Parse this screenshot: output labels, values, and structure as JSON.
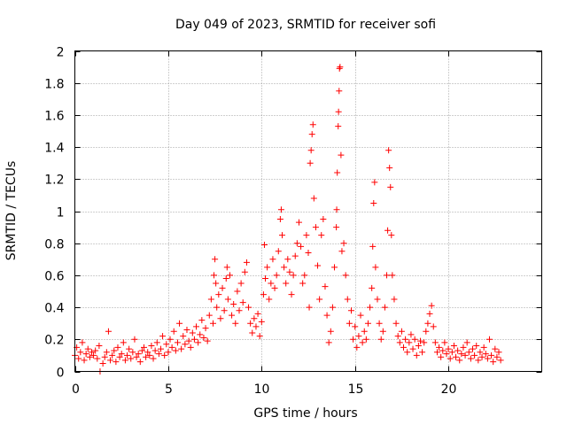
{
  "chart_data": {
    "type": "scatter",
    "title": "Day 049 of 2023, SRMTID for receiver sofi",
    "xlabel": "GPS time / hours",
    "ylabel": "SRMTID / TECUs",
    "xlim": [
      0,
      25
    ],
    "ylim": [
      0,
      2
    ],
    "xticks": [
      0,
      5,
      10,
      15,
      20
    ],
    "xtick_labels": [
      "0",
      "5",
      "10",
      "15",
      "20"
    ],
    "yticks": [
      0,
      0.2,
      0.4,
      0.6,
      0.8,
      1,
      1.2,
      1.4,
      1.6,
      1.8,
      2
    ],
    "ytick_labels": [
      "0",
      "0.2",
      "0.4",
      "0.6",
      "0.8",
      "1",
      "1.2",
      "1.4",
      "1.6",
      "1.8",
      "2"
    ],
    "grid": true,
    "marker": "plus",
    "color": "#ff0000",
    "series": [
      {
        "name": "SRMTID",
        "points": [
          [
            0.0,
            0.1
          ],
          [
            0.1,
            0.15
          ],
          [
            0.2,
            0.08
          ],
          [
            0.3,
            0.12
          ],
          [
            0.4,
            0.18
          ],
          [
            0.5,
            0.07
          ],
          [
            0.6,
            0.11
          ],
          [
            0.7,
            0.14
          ],
          [
            0.8,
            0.09
          ],
          [
            0.9,
            0.12
          ],
          [
            1.0,
            0.1
          ],
          [
            1.1,
            0.13
          ],
          [
            1.2,
            0.08
          ],
          [
            1.3,
            0.16
          ],
          [
            1.35,
            0.0
          ],
          [
            1.5,
            0.05
          ],
          [
            1.6,
            0.09
          ],
          [
            1.7,
            0.12
          ],
          [
            1.8,
            0.25
          ],
          [
            1.9,
            0.07
          ],
          [
            2.0,
            0.1
          ],
          [
            2.1,
            0.13
          ],
          [
            2.2,
            0.06
          ],
          [
            2.3,
            0.15
          ],
          [
            2.4,
            0.09
          ],
          [
            2.5,
            0.11
          ],
          [
            2.6,
            0.18
          ],
          [
            2.7,
            0.07
          ],
          [
            2.8,
            0.1
          ],
          [
            2.9,
            0.14
          ],
          [
            3.0,
            0.08
          ],
          [
            3.1,
            0.12
          ],
          [
            3.2,
            0.2
          ],
          [
            3.3,
            0.09
          ],
          [
            3.4,
            0.11
          ],
          [
            3.5,
            0.06
          ],
          [
            3.6,
            0.13
          ],
          [
            3.7,
            0.15
          ],
          [
            3.8,
            0.09
          ],
          [
            3.9,
            0.12
          ],
          [
            4.0,
            0.1
          ],
          [
            4.1,
            0.16
          ],
          [
            4.2,
            0.08
          ],
          [
            4.3,
            0.13
          ],
          [
            4.4,
            0.18
          ],
          [
            4.5,
            0.11
          ],
          [
            4.6,
            0.14
          ],
          [
            4.7,
            0.22
          ],
          [
            4.8,
            0.1
          ],
          [
            4.9,
            0.17
          ],
          [
            5.0,
            0.12
          ],
          [
            5.1,
            0.2
          ],
          [
            5.2,
            0.15
          ],
          [
            5.3,
            0.25
          ],
          [
            5.4,
            0.13
          ],
          [
            5.5,
            0.18
          ],
          [
            5.6,
            0.3
          ],
          [
            5.7,
            0.14
          ],
          [
            5.8,
            0.22
          ],
          [
            5.9,
            0.17
          ],
          [
            6.0,
            0.26
          ],
          [
            6.1,
            0.19
          ],
          [
            6.2,
            0.15
          ],
          [
            6.3,
            0.24
          ],
          [
            6.4,
            0.2
          ],
          [
            6.5,
            0.28
          ],
          [
            6.6,
            0.18
          ],
          [
            6.7,
            0.23
          ],
          [
            6.8,
            0.32
          ],
          [
            6.9,
            0.21
          ],
          [
            7.0,
            0.27
          ],
          [
            7.1,
            0.19
          ],
          [
            7.2,
            0.35
          ],
          [
            7.3,
            0.45
          ],
          [
            7.4,
            0.3
          ],
          [
            7.45,
            0.6
          ],
          [
            7.5,
            0.7
          ],
          [
            7.55,
            0.55
          ],
          [
            7.6,
            0.4
          ],
          [
            7.7,
            0.48
          ],
          [
            7.8,
            0.33
          ],
          [
            7.9,
            0.52
          ],
          [
            8.0,
            0.38
          ],
          [
            8.1,
            0.58
          ],
          [
            8.15,
            0.65
          ],
          [
            8.2,
            0.45
          ],
          [
            8.3,
            0.6
          ],
          [
            8.4,
            0.35
          ],
          [
            8.5,
            0.42
          ],
          [
            8.6,
            0.3
          ],
          [
            8.7,
            0.5
          ],
          [
            8.8,
            0.38
          ],
          [
            8.9,
            0.55
          ],
          [
            9.0,
            0.43
          ],
          [
            9.1,
            0.62
          ],
          [
            9.2,
            0.68
          ],
          [
            9.3,
            0.4
          ],
          [
            9.4,
            0.3
          ],
          [
            9.5,
            0.24
          ],
          [
            9.6,
            0.33
          ],
          [
            9.7,
            0.28
          ],
          [
            9.8,
            0.36
          ],
          [
            9.9,
            0.22
          ],
          [
            10.0,
            0.31
          ],
          [
            10.1,
            0.48
          ],
          [
            10.15,
            0.79
          ],
          [
            10.2,
            0.58
          ],
          [
            10.3,
            0.65
          ],
          [
            10.4,
            0.45
          ],
          [
            10.5,
            0.55
          ],
          [
            10.6,
            0.7
          ],
          [
            10.7,
            0.52
          ],
          [
            10.8,
            0.6
          ],
          [
            10.9,
            0.75
          ],
          [
            11.0,
            0.95
          ],
          [
            11.05,
            1.01
          ],
          [
            11.1,
            0.85
          ],
          [
            11.2,
            0.65
          ],
          [
            11.3,
            0.55
          ],
          [
            11.4,
            0.7
          ],
          [
            11.5,
            0.62
          ],
          [
            11.6,
            0.48
          ],
          [
            11.7,
            0.6
          ],
          [
            11.8,
            0.72
          ],
          [
            11.9,
            0.8
          ],
          [
            12.0,
            0.93
          ],
          [
            12.1,
            0.78
          ],
          [
            12.2,
            0.55
          ],
          [
            12.3,
            0.6
          ],
          [
            12.4,
            0.85
          ],
          [
            12.5,
            0.74
          ],
          [
            12.55,
            0.4
          ],
          [
            12.6,
            1.3
          ],
          [
            12.65,
            1.38
          ],
          [
            12.7,
            1.48
          ],
          [
            12.75,
            1.54
          ],
          [
            12.8,
            1.08
          ],
          [
            12.9,
            0.9
          ],
          [
            13.0,
            0.66
          ],
          [
            13.1,
            0.45
          ],
          [
            13.2,
            0.85
          ],
          [
            13.3,
            0.95
          ],
          [
            13.4,
            0.53
          ],
          [
            13.5,
            0.35
          ],
          [
            13.6,
            0.18
          ],
          [
            13.7,
            0.25
          ],
          [
            13.8,
            0.4
          ],
          [
            13.9,
            0.65
          ],
          [
            14.0,
            0.9
          ],
          [
            14.02,
            1.01
          ],
          [
            14.05,
            1.24
          ],
          [
            14.1,
            1.53
          ],
          [
            14.12,
            1.62
          ],
          [
            14.15,
            1.75
          ],
          [
            14.17,
            1.89
          ],
          [
            14.2,
            1.9
          ],
          [
            14.25,
            1.35
          ],
          [
            14.3,
            0.75
          ],
          [
            14.4,
            0.8
          ],
          [
            14.5,
            0.6
          ],
          [
            14.6,
            0.45
          ],
          [
            14.7,
            0.3
          ],
          [
            14.8,
            0.38
          ],
          [
            14.9,
            0.2
          ],
          [
            15.0,
            0.28
          ],
          [
            15.1,
            0.15
          ],
          [
            15.2,
            0.22
          ],
          [
            15.3,
            0.35
          ],
          [
            15.4,
            0.18
          ],
          [
            15.5,
            0.25
          ],
          [
            15.6,
            0.2
          ],
          [
            15.7,
            0.3
          ],
          [
            15.8,
            0.4
          ],
          [
            15.9,
            0.52
          ],
          [
            15.95,
            0.78
          ],
          [
            16.0,
            1.05
          ],
          [
            16.05,
            1.18
          ],
          [
            16.1,
            0.65
          ],
          [
            16.2,
            0.45
          ],
          [
            16.3,
            0.3
          ],
          [
            16.4,
            0.2
          ],
          [
            16.5,
            0.25
          ],
          [
            16.6,
            0.4
          ],
          [
            16.7,
            0.6
          ],
          [
            16.75,
            0.88
          ],
          [
            16.8,
            1.38
          ],
          [
            16.85,
            1.27
          ],
          [
            16.9,
            1.15
          ],
          [
            16.95,
            0.85
          ],
          [
            17.0,
            0.6
          ],
          [
            17.1,
            0.45
          ],
          [
            17.2,
            0.3
          ],
          [
            17.3,
            0.22
          ],
          [
            17.4,
            0.18
          ],
          [
            17.5,
            0.25
          ],
          [
            17.6,
            0.15
          ],
          [
            17.7,
            0.2
          ],
          [
            17.8,
            0.12
          ],
          [
            17.9,
            0.18
          ],
          [
            18.0,
            0.23
          ],
          [
            18.1,
            0.14
          ],
          [
            18.2,
            0.2
          ],
          [
            18.3,
            0.1
          ],
          [
            18.4,
            0.16
          ],
          [
            18.5,
            0.19
          ],
          [
            18.6,
            0.12
          ],
          [
            18.7,
            0.18
          ],
          [
            18.8,
            0.25
          ],
          [
            18.9,
            0.3
          ],
          [
            19.0,
            0.36
          ],
          [
            19.1,
            0.41
          ],
          [
            19.2,
            0.28
          ],
          [
            19.3,
            0.18
          ],
          [
            19.4,
            0.12
          ],
          [
            19.5,
            0.15
          ],
          [
            19.6,
            0.09
          ],
          [
            19.7,
            0.13
          ],
          [
            19.8,
            0.18
          ],
          [
            19.9,
            0.11
          ],
          [
            20.0,
            0.14
          ],
          [
            20.1,
            0.08
          ],
          [
            20.2,
            0.12
          ],
          [
            20.3,
            0.16
          ],
          [
            20.4,
            0.09
          ],
          [
            20.5,
            0.13
          ],
          [
            20.6,
            0.07
          ],
          [
            20.7,
            0.11
          ],
          [
            20.8,
            0.15
          ],
          [
            20.9,
            0.1
          ],
          [
            21.0,
            0.18
          ],
          [
            21.1,
            0.12
          ],
          [
            21.2,
            0.08
          ],
          [
            21.3,
            0.14
          ],
          [
            21.4,
            0.1
          ],
          [
            21.5,
            0.16
          ],
          [
            21.6,
            0.07
          ],
          [
            21.7,
            0.12
          ],
          [
            21.8,
            0.09
          ],
          [
            21.9,
            0.15
          ],
          [
            22.0,
            0.11
          ],
          [
            22.1,
            0.08
          ],
          [
            22.2,
            0.2
          ],
          [
            22.3,
            0.1
          ],
          [
            22.4,
            0.06
          ],
          [
            22.5,
            0.14
          ],
          [
            22.6,
            0.09
          ],
          [
            22.7,
            0.12
          ],
          [
            22.8,
            0.07
          ]
        ]
      }
    ]
  }
}
